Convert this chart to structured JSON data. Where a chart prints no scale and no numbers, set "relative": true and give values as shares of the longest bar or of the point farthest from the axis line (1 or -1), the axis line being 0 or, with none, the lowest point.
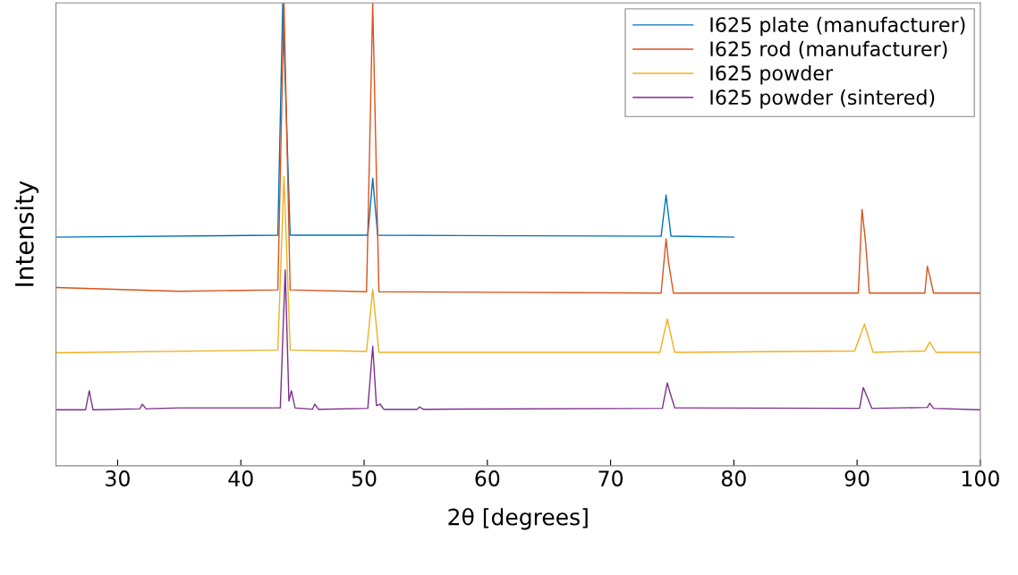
{
  "chart_data": {
    "type": "line",
    "xlabel": "2θ [degrees]",
    "ylabel": "Intensity",
    "relative": true,
    "xlim": [
      25,
      100
    ],
    "xticks": [
      30,
      40,
      50,
      60,
      70,
      80,
      90,
      100
    ],
    "tick_labels": "x",
    "legend": "top right",
    "grid": false,
    "series": [
      {
        "name": "I625 plate (manufacturer)",
        "color": "#0072bd",
        "x": [
          25,
          43.0,
          43.4,
          44.0,
          50.3,
          50.7,
          51.1,
          74.1,
          74.5,
          74.9,
          80
        ],
        "values": [
          0.494,
          0.498,
          1,
          0.498,
          0.498,
          0.621,
          0.498,
          0.496,
          0.585,
          0.496,
          0.494
        ]
      },
      {
        "name": "I625 rod (manufacturer)",
        "color": "#d95319",
        "x": [
          25,
          35,
          43.0,
          43.5,
          44.0,
          50.2,
          50.7,
          51.2,
          74.1,
          74.5,
          74.7,
          75.1,
          90.1,
          90.4,
          90.7,
          91.0,
          95.5,
          95.7,
          95.9,
          96.2,
          100
        ],
        "values": [
          0.385,
          0.377,
          0.38,
          1,
          0.38,
          0.376,
          1,
          0.376,
          0.373,
          0.49,
          0.44,
          0.373,
          0.373,
          0.554,
          0.48,
          0.373,
          0.373,
          0.431,
          0.41,
          0.373,
          0.373
        ]
      },
      {
        "name": "I625 powder",
        "color": "#edb120",
        "x": [
          25,
          43.0,
          43.5,
          44.0,
          50.2,
          50.7,
          51.2,
          74.0,
          74.6,
          75.2,
          89.8,
          90.6,
          91.3,
          95.5,
          95.9,
          96.4,
          100
        ],
        "values": [
          0.244,
          0.25,
          0.625,
          0.25,
          0.247,
          0.381,
          0.245,
          0.245,
          0.317,
          0.245,
          0.248,
          0.306,
          0.245,
          0.248,
          0.267,
          0.245,
          0.245
        ]
      },
      {
        "name": "I625 powder (sintered)",
        "color": "#7e2f8e",
        "x": [
          25,
          27.4,
          27.7,
          28.0,
          31.8,
          32.0,
          32.3,
          35,
          43.2,
          43.6,
          43.9,
          44.1,
          44.4,
          45.8,
          46.0,
          46.3,
          50.3,
          50.7,
          51.0,
          51.3,
          51.6,
          54.3,
          54.5,
          54.8,
          74.2,
          74.6,
          74.8,
          75.2,
          90.2,
          90.5,
          90.8,
          91.2,
          95.7,
          95.9,
          96.2,
          100
        ],
        "values": [
          0.121,
          0.121,
          0.162,
          0.121,
          0.123,
          0.133,
          0.123,
          0.125,
          0.125,
          0.423,
          0.14,
          0.162,
          0.125,
          0.122,
          0.133,
          0.122,
          0.124,
          0.258,
          0.13,
          0.133,
          0.122,
          0.122,
          0.127,
          0.122,
          0.124,
          0.179,
          0.16,
          0.125,
          0.124,
          0.169,
          0.15,
          0.124,
          0.126,
          0.135,
          0.124,
          0.121
        ]
      }
    ]
  }
}
